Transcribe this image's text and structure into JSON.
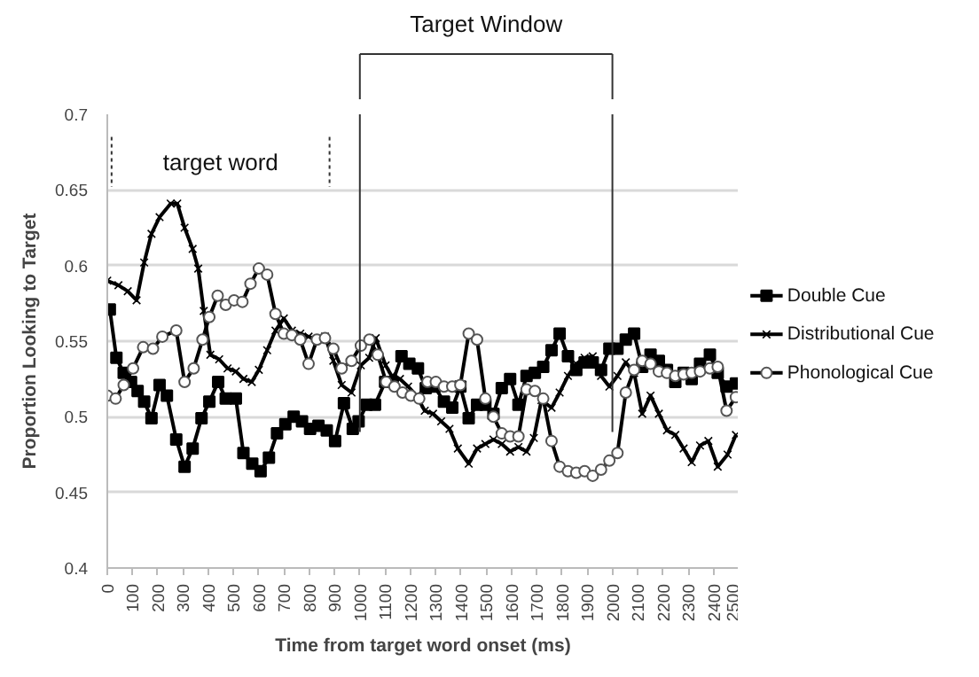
{
  "chart_data": {
    "type": "line",
    "xlabel": "Time from target word onset (ms)",
    "ylabel": "Proportion Looking to Target",
    "xlim": [
      0,
      2500
    ],
    "xticks": [
      0,
      100,
      200,
      300,
      400,
      500,
      600,
      700,
      800,
      900,
      1000,
      1100,
      1200,
      1300,
      1400,
      1500,
      1600,
      1700,
      1800,
      1900,
      2000,
      2100,
      2200,
      2300,
      2400,
      2500
    ],
    "ylim": [
      0.4,
      0.7
    ],
    "yticks": [
      0.4,
      0.45,
      0.5,
      0.55,
      0.6,
      0.65,
      0.7
    ],
    "grid": "y",
    "legend": "right",
    "ref_lines": [
      {
        "axis": "x",
        "value": 1000
      },
      {
        "axis": "x",
        "value": 2000
      },
      {
        "axis": "x",
        "value": 17,
        "line_style": "dashed"
      },
      {
        "axis": "x",
        "value": 880,
        "line_style": "dashed"
      }
    ],
    "annotations": [
      "Target Window",
      "target word"
    ],
    "series": [
      {
        "name": "Double Cue",
        "color": "#000000",
        "marker": "square",
        "x": [
          10,
          36,
          65,
          94,
          120,
          146,
          175,
          207,
          236,
          273,
          306,
          338,
          373,
          404,
          439,
          469,
          509,
          539,
          574,
          607,
          640,
          672,
          705,
          738,
          771,
          803,
          836,
          869,
          902,
          937,
          972,
          995,
          1027,
          1060,
          1100,
          1130,
          1165,
          1196,
          1230,
          1261,
          1296,
          1333,
          1366,
          1398,
          1431,
          1464,
          1497,
          1529,
          1562,
          1595,
          1628,
          1660,
          1693,
          1726,
          1759,
          1791,
          1824,
          1857,
          1890,
          1922,
          1955,
          1988,
          2020,
          2053,
          2086,
          2118,
          2151,
          2184,
          2216,
          2249,
          2282,
          2314,
          2347,
          2386,
          2417,
          2452,
          2489
        ],
        "values": [
          0.571,
          0.539,
          0.529,
          0.523,
          0.517,
          0.51,
          0.499,
          0.521,
          0.514,
          0.485,
          0.467,
          0.479,
          0.499,
          0.51,
          0.523,
          0.512,
          0.512,
          0.476,
          0.469,
          0.464,
          0.473,
          0.489,
          0.495,
          0.5,
          0.497,
          0.492,
          0.494,
          0.491,
          0.484,
          0.509,
          0.492,
          0.497,
          0.508,
          0.508,
          0.523,
          0.523,
          0.54,
          0.535,
          0.532,
          0.519,
          0.52,
          0.51,
          0.506,
          0.52,
          0.499,
          0.508,
          0.508,
          0.502,
          0.519,
          0.525,
          0.508,
          0.527,
          0.529,
          0.533,
          0.544,
          0.555,
          0.54,
          0.531,
          0.536,
          0.536,
          0.531,
          0.545,
          0.545,
          0.551,
          0.555,
          0.533,
          0.541,
          0.537,
          0.531,
          0.523,
          0.529,
          0.525,
          0.535,
          0.541,
          0.529,
          0.52,
          0.522
        ]
      },
      {
        "name": "Distributional Cue",
        "color": "#000000",
        "marker": "cross",
        "x": [
          0,
          44,
          81,
          116,
          146,
          175,
          207,
          251,
          277,
          306,
          338,
          360,
          382,
          408,
          443,
          476,
          509,
          539,
          572,
          600,
          633,
          666,
          699,
          731,
          764,
          797,
          830,
          862,
          895,
          928,
          967,
          1004,
          1037,
          1063,
          1102,
          1126,
          1159,
          1191,
          1224,
          1257,
          1290,
          1322,
          1355,
          1388,
          1431,
          1464,
          1497,
          1529,
          1562,
          1595,
          1628,
          1660,
          1689,
          1719,
          1759,
          1791,
          1824,
          1857,
          1890,
          1922,
          1955,
          1988,
          2020,
          2053,
          2086,
          2118,
          2151,
          2184,
          2216,
          2249,
          2282,
          2314,
          2347,
          2380,
          2417,
          2456,
          2489
        ],
        "values": [
          0.59,
          0.587,
          0.583,
          0.577,
          0.602,
          0.621,
          0.632,
          0.641,
          0.641,
          0.625,
          0.611,
          0.598,
          0.57,
          0.541,
          0.538,
          0.532,
          0.53,
          0.525,
          0.523,
          0.531,
          0.544,
          0.557,
          0.565,
          0.557,
          0.555,
          0.553,
          0.551,
          0.553,
          0.537,
          0.521,
          0.516,
          0.534,
          0.539,
          0.552,
          0.534,
          0.527,
          0.525,
          0.52,
          0.514,
          0.504,
          0.502,
          0.497,
          0.492,
          0.479,
          0.469,
          0.479,
          0.482,
          0.485,
          0.482,
          0.477,
          0.48,
          0.477,
          0.486,
          0.511,
          0.506,
          0.516,
          0.527,
          0.535,
          0.539,
          0.54,
          0.527,
          0.52,
          0.527,
          0.536,
          0.529,
          0.502,
          0.514,
          0.502,
          0.491,
          0.488,
          0.479,
          0.47,
          0.481,
          0.484,
          0.467,
          0.475,
          0.488
        ]
      },
      {
        "name": "Phonological Cue",
        "color": "#000000",
        "marker": "circle",
        "x": [
          0,
          33,
          65,
          102,
          142,
          181,
          218,
          273,
          306,
          342,
          377,
          404,
          437,
          469,
          502,
          535,
          567,
          600,
          633,
          666,
          699,
          731,
          764,
          797,
          830,
          862,
          895,
          928,
          967,
          1004,
          1038,
          1071,
          1104,
          1137,
          1169,
          1202,
          1235,
          1268,
          1301,
          1333,
          1366,
          1398,
          1431,
          1464,
          1497,
          1529,
          1562,
          1595,
          1628,
          1660,
          1693,
          1726,
          1759,
          1791,
          1824,
          1857,
          1890,
          1922,
          1955,
          1988,
          2020,
          2053,
          2086,
          2118,
          2151,
          2184,
          2216,
          2249,
          2282,
          2314,
          2347,
          2386,
          2417,
          2452,
          2489
        ],
        "values": [
          0.514,
          0.512,
          0.521,
          0.532,
          0.546,
          0.545,
          0.553,
          0.557,
          0.523,
          0.532,
          0.551,
          0.566,
          0.58,
          0.574,
          0.577,
          0.576,
          0.588,
          0.598,
          0.594,
          0.568,
          0.555,
          0.554,
          0.551,
          0.535,
          0.551,
          0.552,
          0.545,
          0.532,
          0.537,
          0.547,
          0.551,
          0.541,
          0.523,
          0.52,
          0.516,
          0.514,
          0.512,
          0.523,
          0.523,
          0.52,
          0.52,
          0.521,
          0.555,
          0.551,
          0.512,
          0.5,
          0.489,
          0.487,
          0.487,
          0.518,
          0.517,
          0.512,
          0.484,
          0.467,
          0.464,
          0.463,
          0.464,
          0.461,
          0.465,
          0.471,
          0.476,
          0.516,
          0.531,
          0.537,
          0.535,
          0.53,
          0.529,
          0.527,
          0.528,
          0.529,
          0.53,
          0.532,
          0.533,
          0.504,
          0.513
        ]
      }
    ]
  }
}
